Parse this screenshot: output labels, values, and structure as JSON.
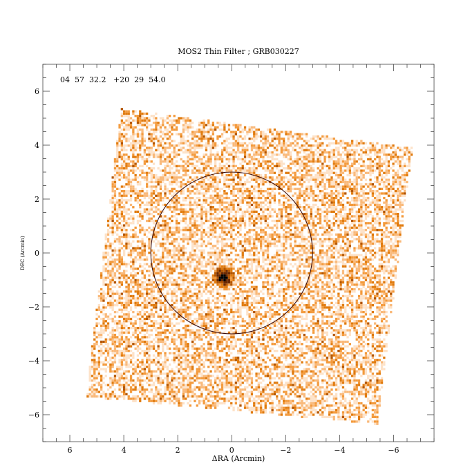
{
  "chart_data": {
    "type": "heatmap",
    "title": "MOS2 Thin Filter ; GRB030227",
    "xlabel": "ΔRA (Arcmin)",
    "ylabel": "DEC (Arcmin)",
    "coordinate_label": "04  57  32.2   +20  29  54.0",
    "xlim": [
      7,
      -7.5
    ],
    "ylim": [
      -7,
      7
    ],
    "x_ticks": [
      6,
      4,
      2,
      0,
      -2,
      -4,
      -6
    ],
    "x_tick_labels": [
      "6",
      "4",
      "2",
      "0",
      "−2",
      "−4",
      "−6"
    ],
    "y_ticks": [
      6,
      4,
      2,
      0,
      -2,
      -4,
      -6
    ],
    "y_tick_labels": [
      "6",
      "4",
      "2",
      "0",
      "−2",
      "−4",
      "−6"
    ],
    "x_reversed": true,
    "grid": false,
    "field_of_view_corners": [
      [
        4.1,
        5.35
      ],
      [
        -6.7,
        3.9
      ],
      [
        -5.4,
        -6.35
      ],
      [
        5.4,
        -5.35
      ]
    ],
    "circle": {
      "center": [
        0,
        0
      ],
      "radius_arcmin": 3.0
    },
    "source": {
      "position": [
        0.3,
        -0.9
      ],
      "description": "bright point source (GRB X-ray afterglow)"
    },
    "colormap": [
      "#ffffff",
      "#fde2c8",
      "#f9b97a",
      "#f39a3c",
      "#e07b0f",
      "#b35500",
      "#6b2800",
      "#000000"
    ]
  }
}
